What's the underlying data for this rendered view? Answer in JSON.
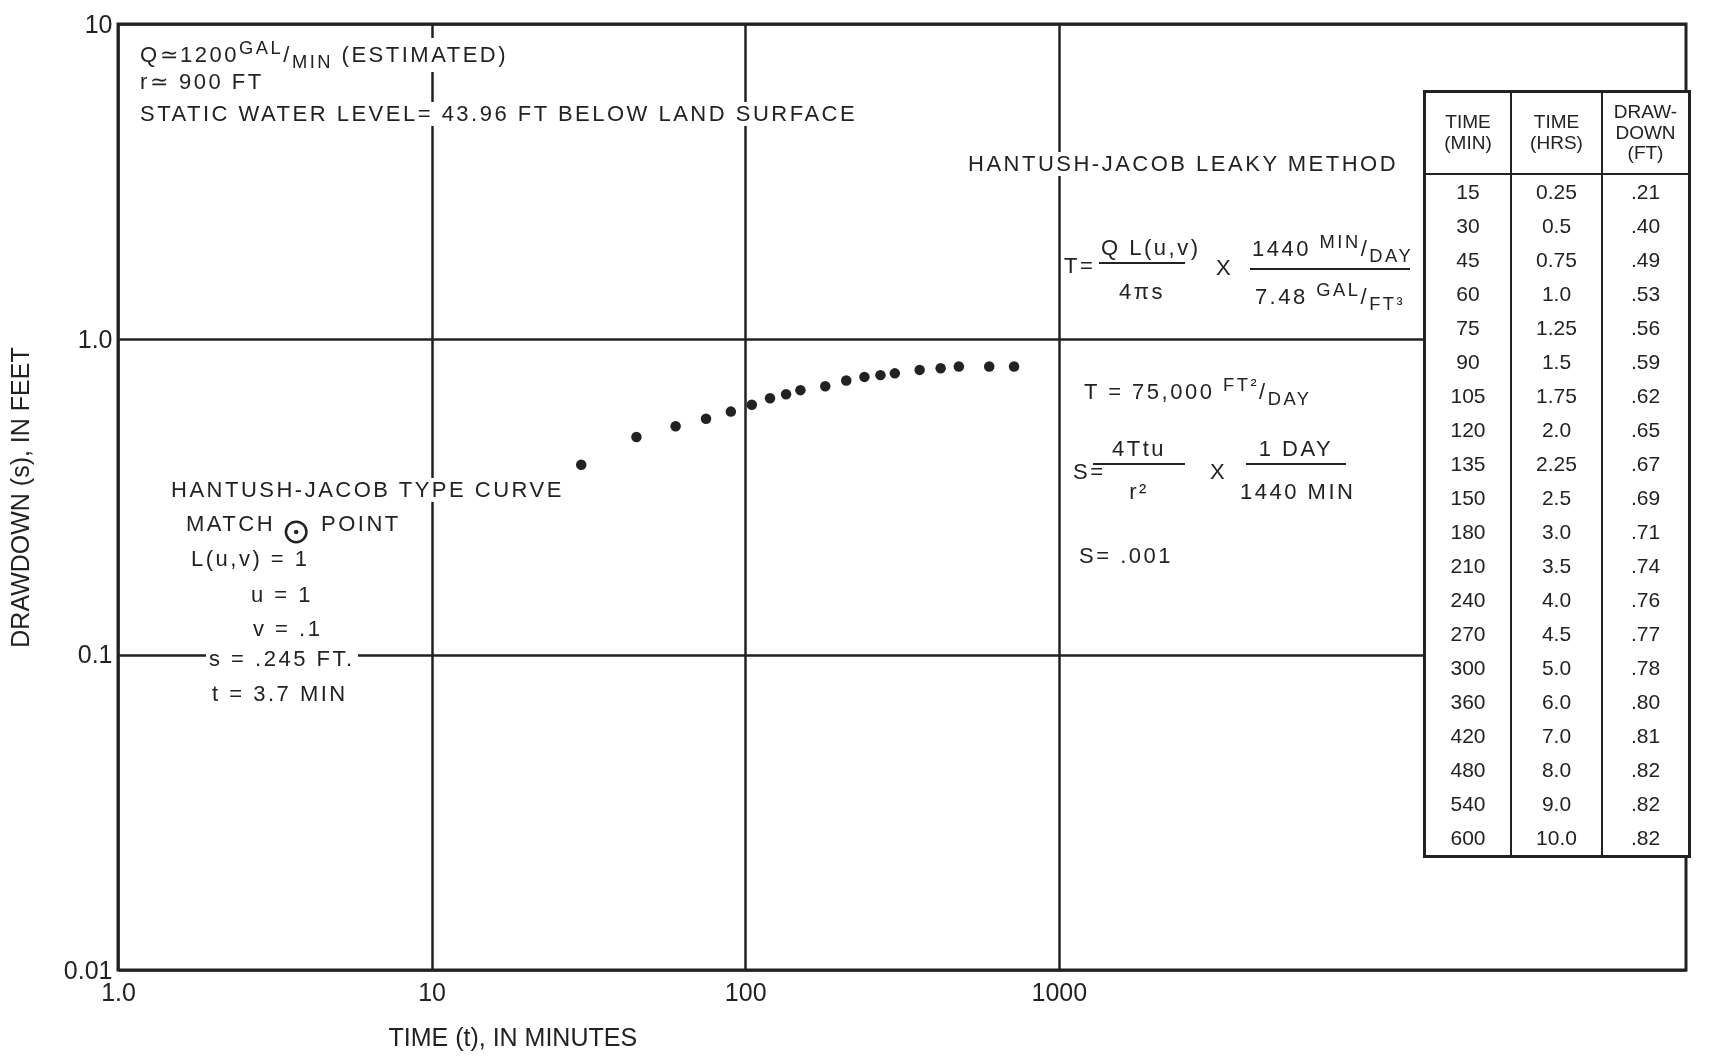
{
  "chart_data": {
    "type": "scatter",
    "xlabel": "TIME (t), IN MINUTES",
    "ylabel": "DRAWDOWN (s), IN FEET",
    "log": "xy",
    "xlim": [
      1,
      100000
    ],
    "xticks": [
      {
        "value": 1,
        "label": "1.0"
      },
      10,
      100,
      1000
    ],
    "ylim": [
      0.01,
      10
    ],
    "yticks": [
      0.01,
      0.1,
      {
        "value": 1,
        "label": "1.0"
      },
      10
    ],
    "grid": true,
    "marker": "circle",
    "series": [
      {
        "color": "#222222",
        "x": [
          30,
          45,
          60,
          75,
          90,
          105,
          120,
          135,
          150,
          180,
          210,
          240,
          270,
          300,
          360,
          420,
          480,
          600,
          720
        ],
        "values": [
          0.4,
          0.49,
          0.53,
          0.56,
          0.59,
          0.62,
          0.65,
          0.67,
          0.69,
          0.71,
          0.74,
          0.76,
          0.77,
          0.78,
          0.8,
          0.81,
          0.82,
          0.82,
          0.82
        ]
      },
      {
        "color": "#222222",
        "x": [
          3.7
        ],
        "values": [
          0.245
        ]
      }
    ],
    "annotations": [
      "Q≃1200$^{GAL}$/$_{MIN}$  (ESTIMATED)",
      "r≃  900 FT",
      "STATIC WATER LEVEL= 43.96 FT BELOW LAND SURFACE",
      "HANTUSH-JACOB LEAKY METHOD",
      "T=",
      "Q  L(u,v)",
      "4πs",
      "X",
      "1440 $^{MIN}$/$_{DAY}$",
      "7.48 $^{GAL}$/$_{FT³}$",
      "T = 75,000  $^{FT²}$/$_{DAY}$",
      "S=",
      "4Ttu",
      "r²",
      "X",
      "1 DAY",
      "1440 MIN",
      "S= .001",
      "HANTUSH-JACOB TYPE CURVE",
      "MATCH",
      "POINT",
      "L(u,v) = 1",
      "u = 1",
      "v = .1",
      "s = .245 FT.",
      "t = 3.7 MIN",
      "TIME (MIN)",
      "TIME (HRS)",
      "DRAW- DOWN (FT)",
      "15",
      "0.25",
      ".21",
      "30",
      "0.5",
      ".40",
      "45",
      "0.75",
      ".49",
      "60",
      "1.0",
      ".53",
      "75",
      "1.25",
      ".56",
      "90",
      "1.5",
      ".59",
      "105",
      "1.75",
      ".62",
      "120",
      "2.0",
      ".65",
      "135",
      "2.25",
      ".67",
      "150",
      "2.5",
      ".69",
      "180",
      "3.0",
      ".71",
      "210",
      "3.5",
      ".74",
      "240",
      "4.0",
      ".76",
      "270",
      "4.5",
      ".77",
      "300",
      "5.0",
      ".78",
      "360",
      "6.0",
      ".80",
      "420",
      "7.0",
      ".81",
      "480",
      "8.0",
      ".82",
      "540",
      "9.0",
      ".82",
      "600",
      "10.0",
      ".82"
    ]
  }
}
